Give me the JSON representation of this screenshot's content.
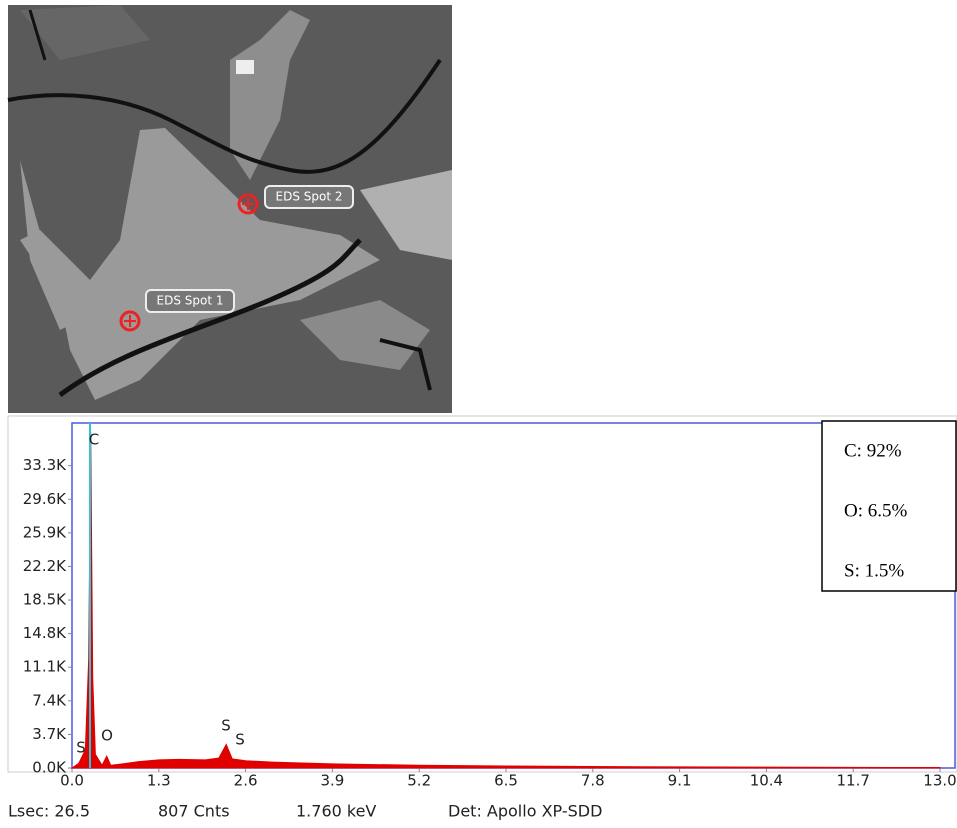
{
  "image": {
    "spot_labels": [
      "EDS Spot 2",
      "EDS Spot 1"
    ]
  },
  "chart_data": {
    "type": "area",
    "x": [
      0,
      0.1,
      0.2,
      0.25,
      0.28,
      0.31,
      0.35,
      0.45,
      0.52,
      0.58,
      0.7,
      1.0,
      1.3,
      1.6,
      2.0,
      2.2,
      2.31,
      2.4,
      2.6,
      3.0,
      3.9,
      5.2,
      6.5,
      7.8,
      9.1,
      10.4,
      11.7,
      13.0
    ],
    "values": [
      0,
      500,
      2000,
      12000,
      37000,
      10000,
      1500,
      300,
      1300,
      300,
      400,
      700,
      900,
      950,
      900,
      1100,
      2600,
      1000,
      800,
      650,
      450,
      300,
      220,
      160,
      120,
      90,
      70,
      50
    ],
    "color": "#e00000",
    "xlim": [
      0,
      13
    ],
    "ylim": [
      0,
      38000
    ],
    "xticks": [
      {
        "value": 0,
        "label": "0.0"
      },
      1.3,
      2.6,
      3.9,
      5.2,
      6.5,
      7.8,
      9.1,
      10.4,
      11.7,
      {
        "value": 13,
        "label": "13.0"
      }
    ],
    "yticks": [
      {
        "value": 0,
        "label": "0.0K"
      },
      {
        "value": 3700,
        "label": "3.7K"
      },
      {
        "value": 7400,
        "label": "7.4K"
      },
      {
        "value": 11100,
        "label": "11.1K"
      },
      {
        "value": 14800,
        "label": "14.8K"
      },
      {
        "value": 18500,
        "label": "18.5K"
      },
      {
        "value": 22200,
        "label": "22.2K"
      },
      {
        "value": 25900,
        "label": "25.9K"
      },
      {
        "value": 29600,
        "label": "29.6K"
      },
      {
        "value": 33300,
        "label": "33.3K"
      }
    ],
    "peak_labels": [
      "S",
      "C",
      "O",
      "S",
      "S"
    ],
    "composition": [
      "C: 92%",
      "O: 6.5%",
      "S: 1.5%"
    ]
  },
  "status_bar": [
    "Lsec: 26.5",
    "807 Cnts",
    "1.760 keV",
    "Det: Apollo XP-SDD"
  ]
}
